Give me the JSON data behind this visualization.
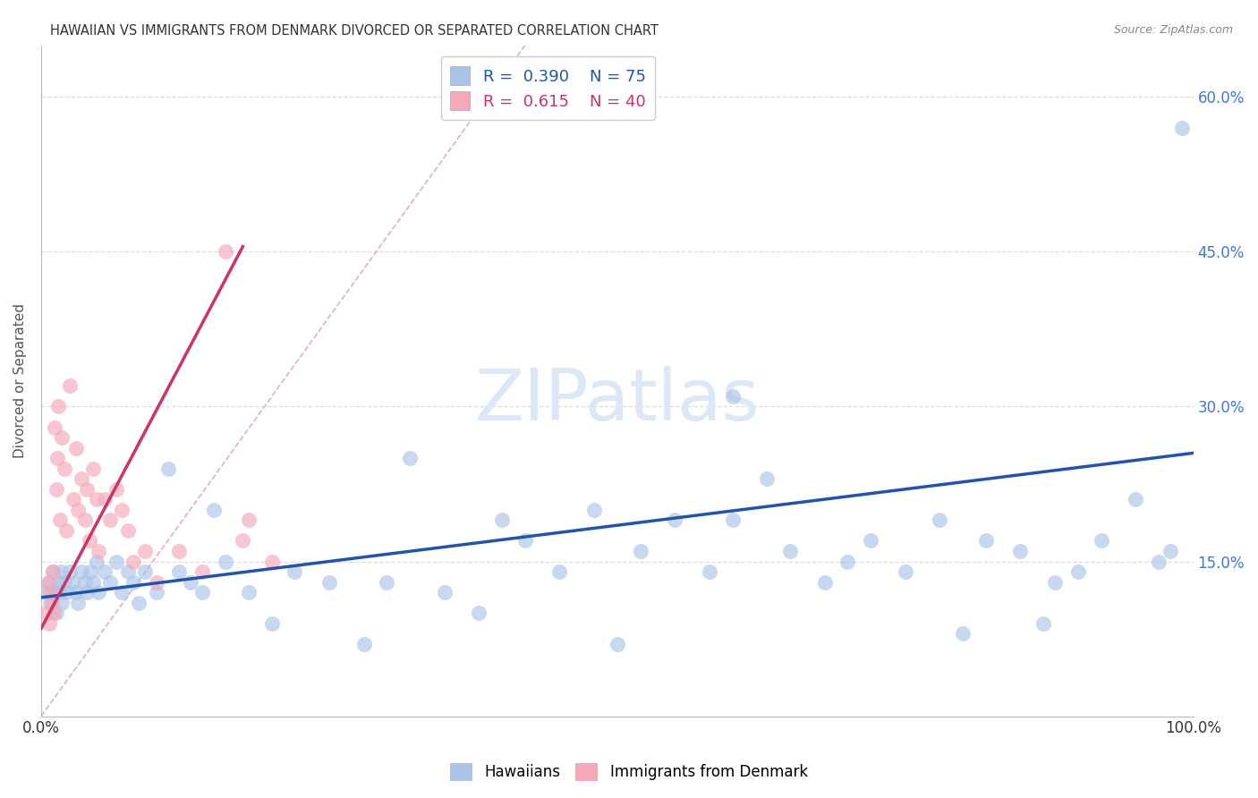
{
  "title": "HAWAIIAN VS IMMIGRANTS FROM DENMARK DIVORCED OR SEPARATED CORRELATION CHART",
  "source": "Source: ZipAtlas.com",
  "ylabel": "Divorced or Separated",
  "xlim": [
    0.0,
    1.0
  ],
  "ylim": [
    0.0,
    0.65
  ],
  "blue_R": 0.39,
  "blue_N": 75,
  "pink_R": 0.615,
  "pink_N": 40,
  "blue_color": "#aac4e8",
  "pink_color": "#f4a8b8",
  "blue_line_color": "#2255aa",
  "pink_line_color": "#cc3366",
  "ref_line_color": "#e0b0c0",
  "watermark": "ZIPatlas",
  "watermark_color": "#dce8f5",
  "legend_blue_label": "Hawaiians",
  "legend_pink_label": "Immigrants from Denmark",
  "blue_line_x0": 0.0,
  "blue_line_y0": 0.115,
  "blue_line_x1": 1.0,
  "blue_line_y1": 0.255,
  "pink_line_x0": 0.0,
  "pink_line_y0": 0.085,
  "pink_line_x1": 0.175,
  "pink_line_y1": 0.455,
  "ref_line_x0": 0.0,
  "ref_line_y0": 0.0,
  "ref_line_x1": 0.42,
  "ref_line_y1": 0.65,
  "blue_scatter_x": [
    0.005,
    0.007,
    0.008,
    0.01,
    0.012,
    0.013,
    0.015,
    0.016,
    0.017,
    0.018,
    0.02,
    0.022,
    0.025,
    0.027,
    0.03,
    0.032,
    0.035,
    0.038,
    0.04,
    0.043,
    0.045,
    0.048,
    0.05,
    0.055,
    0.06,
    0.065,
    0.07,
    0.075,
    0.08,
    0.085,
    0.09,
    0.1,
    0.11,
    0.12,
    0.13,
    0.14,
    0.15,
    0.16,
    0.18,
    0.2,
    0.22,
    0.25,
    0.28,
    0.3,
    0.32,
    0.35,
    0.38,
    0.4,
    0.42,
    0.45,
    0.48,
    0.5,
    0.52,
    0.55,
    0.58,
    0.6,
    0.63,
    0.65,
    0.68,
    0.7,
    0.72,
    0.75,
    0.78,
    0.8,
    0.82,
    0.85,
    0.88,
    0.9,
    0.92,
    0.95,
    0.97,
    0.98,
    0.99,
    0.87,
    0.6
  ],
  "blue_scatter_y": [
    0.12,
    0.13,
    0.11,
    0.14,
    0.12,
    0.1,
    0.13,
    0.12,
    0.14,
    0.11,
    0.13,
    0.12,
    0.14,
    0.13,
    0.12,
    0.11,
    0.14,
    0.13,
    0.12,
    0.14,
    0.13,
    0.15,
    0.12,
    0.14,
    0.13,
    0.15,
    0.12,
    0.14,
    0.13,
    0.11,
    0.14,
    0.12,
    0.24,
    0.14,
    0.13,
    0.12,
    0.2,
    0.15,
    0.12,
    0.09,
    0.14,
    0.13,
    0.07,
    0.13,
    0.25,
    0.12,
    0.1,
    0.19,
    0.17,
    0.14,
    0.2,
    0.07,
    0.16,
    0.19,
    0.14,
    0.19,
    0.23,
    0.16,
    0.13,
    0.15,
    0.17,
    0.14,
    0.19,
    0.08,
    0.17,
    0.16,
    0.13,
    0.14,
    0.17,
    0.21,
    0.15,
    0.16,
    0.57,
    0.09,
    0.31
  ],
  "pink_scatter_x": [
    0.005,
    0.006,
    0.007,
    0.008,
    0.009,
    0.01,
    0.011,
    0.012,
    0.013,
    0.014,
    0.015,
    0.016,
    0.018,
    0.02,
    0.022,
    0.025,
    0.028,
    0.03,
    0.032,
    0.035,
    0.038,
    0.04,
    0.042,
    0.045,
    0.048,
    0.05,
    0.055,
    0.06,
    0.065,
    0.07,
    0.075,
    0.08,
    0.09,
    0.1,
    0.12,
    0.14,
    0.16,
    0.18,
    0.2,
    0.175
  ],
  "pink_scatter_y": [
    0.1,
    0.13,
    0.09,
    0.12,
    0.11,
    0.14,
    0.1,
    0.28,
    0.22,
    0.25,
    0.3,
    0.19,
    0.27,
    0.24,
    0.18,
    0.32,
    0.21,
    0.26,
    0.2,
    0.23,
    0.19,
    0.22,
    0.17,
    0.24,
    0.21,
    0.16,
    0.21,
    0.19,
    0.22,
    0.2,
    0.18,
    0.15,
    0.16,
    0.13,
    0.16,
    0.14,
    0.45,
    0.19,
    0.15,
    0.17
  ]
}
